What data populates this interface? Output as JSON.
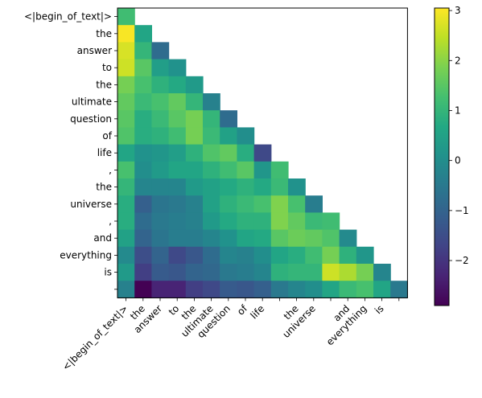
{
  "chart_data": {
    "type": "heatmap",
    "title": "",
    "xlabel": "",
    "ylabel": "",
    "colormap": "viridis",
    "tokens": [
      "<|begin_of_text|>",
      "the",
      "answer",
      "to",
      "the",
      "ultimate",
      "question",
      "of",
      "life",
      ",",
      "the",
      "universe",
      ",",
      "and",
      "everything",
      "is",
      "."
    ],
    "y_tick_labels": [
      "<|begin_of_text|>",
      "the",
      "answer",
      "to",
      "the",
      "ultimate",
      "question",
      "of",
      "life",
      ",",
      "the",
      "universe",
      ",",
      "and",
      "everything",
      "is",
      ""
    ],
    "x_tick_labels": [
      "<|begin_of_text|>",
      "the",
      "answer",
      "to",
      "the",
      "ultimate",
      "question",
      "of",
      "life",
      "",
      "the",
      "universe",
      "",
      "and",
      "everything",
      "is",
      ""
    ],
    "colorbar": {
      "min": -2.9,
      "max": 3.05,
      "ticks": [
        -2,
        -1,
        0,
        1,
        2,
        3
      ],
      "tick_labels": [
        "−2",
        "−1",
        "0",
        "1",
        "2",
        "3"
      ]
    },
    "values": [
      [
        1.2
      ],
      [
        3.0,
        0.6
      ],
      [
        2.7,
        1.0,
        -0.8
      ],
      [
        2.6,
        1.5,
        0.4,
        0.1
      ],
      [
        1.8,
        1.3,
        0.9,
        0.7,
        0.3
      ],
      [
        1.6,
        1.1,
        1.3,
        1.6,
        1.0,
        -0.3
      ],
      [
        1.5,
        0.8,
        1.1,
        1.5,
        1.8,
        1.0,
        -0.8
      ],
      [
        1.4,
        0.8,
        0.9,
        1.2,
        1.8,
        1.1,
        0.5,
        0.0
      ],
      [
        0.6,
        0.1,
        0.2,
        0.4,
        0.9,
        1.4,
        1.6,
        0.8,
        -1.6
      ],
      [
        1.3,
        0.0,
        0.3,
        0.6,
        0.6,
        0.9,
        1.2,
        1.5,
        0.2,
        1.2
      ],
      [
        1.0,
        -0.2,
        -0.2,
        -0.2,
        0.3,
        0.5,
        0.7,
        0.9,
        0.7,
        1.1,
        0.1
      ],
      [
        0.8,
        -1.1,
        -0.6,
        -0.5,
        -0.3,
        0.5,
        0.9,
        1.1,
        1.3,
        1.9,
        1.3,
        -0.4
      ],
      [
        0.8,
        -0.8,
        -0.5,
        -0.4,
        -0.3,
        0.3,
        0.7,
        0.9,
        0.9,
        1.9,
        1.6,
        1.1,
        1.2
      ],
      [
        0.5,
        -1.0,
        -0.6,
        -0.4,
        -0.4,
        -0.2,
        0.1,
        0.6,
        0.7,
        1.5,
        1.7,
        1.6,
        1.4,
        -0.1
      ],
      [
        -0.1,
        -1.5,
        -1.0,
        -1.6,
        -1.3,
        -0.8,
        -0.2,
        -0.3,
        0.0,
        0.6,
        0.8,
        1.2,
        1.8,
        0.9,
        0.2
      ],
      [
        0.3,
        -1.8,
        -1.2,
        -1.3,
        -1.0,
        -0.9,
        -0.5,
        -0.4,
        -0.2,
        0.9,
        1.0,
        1.0,
        2.6,
        2.3,
        1.8,
        -0.2
      ],
      [
        -0.3,
        -2.9,
        -2.3,
        -2.3,
        -1.8,
        -1.6,
        -1.2,
        -1.3,
        -1.1,
        -0.5,
        -0.2,
        0.0,
        0.6,
        1.1,
        1.3,
        0.6,
        -0.5
      ]
    ]
  }
}
